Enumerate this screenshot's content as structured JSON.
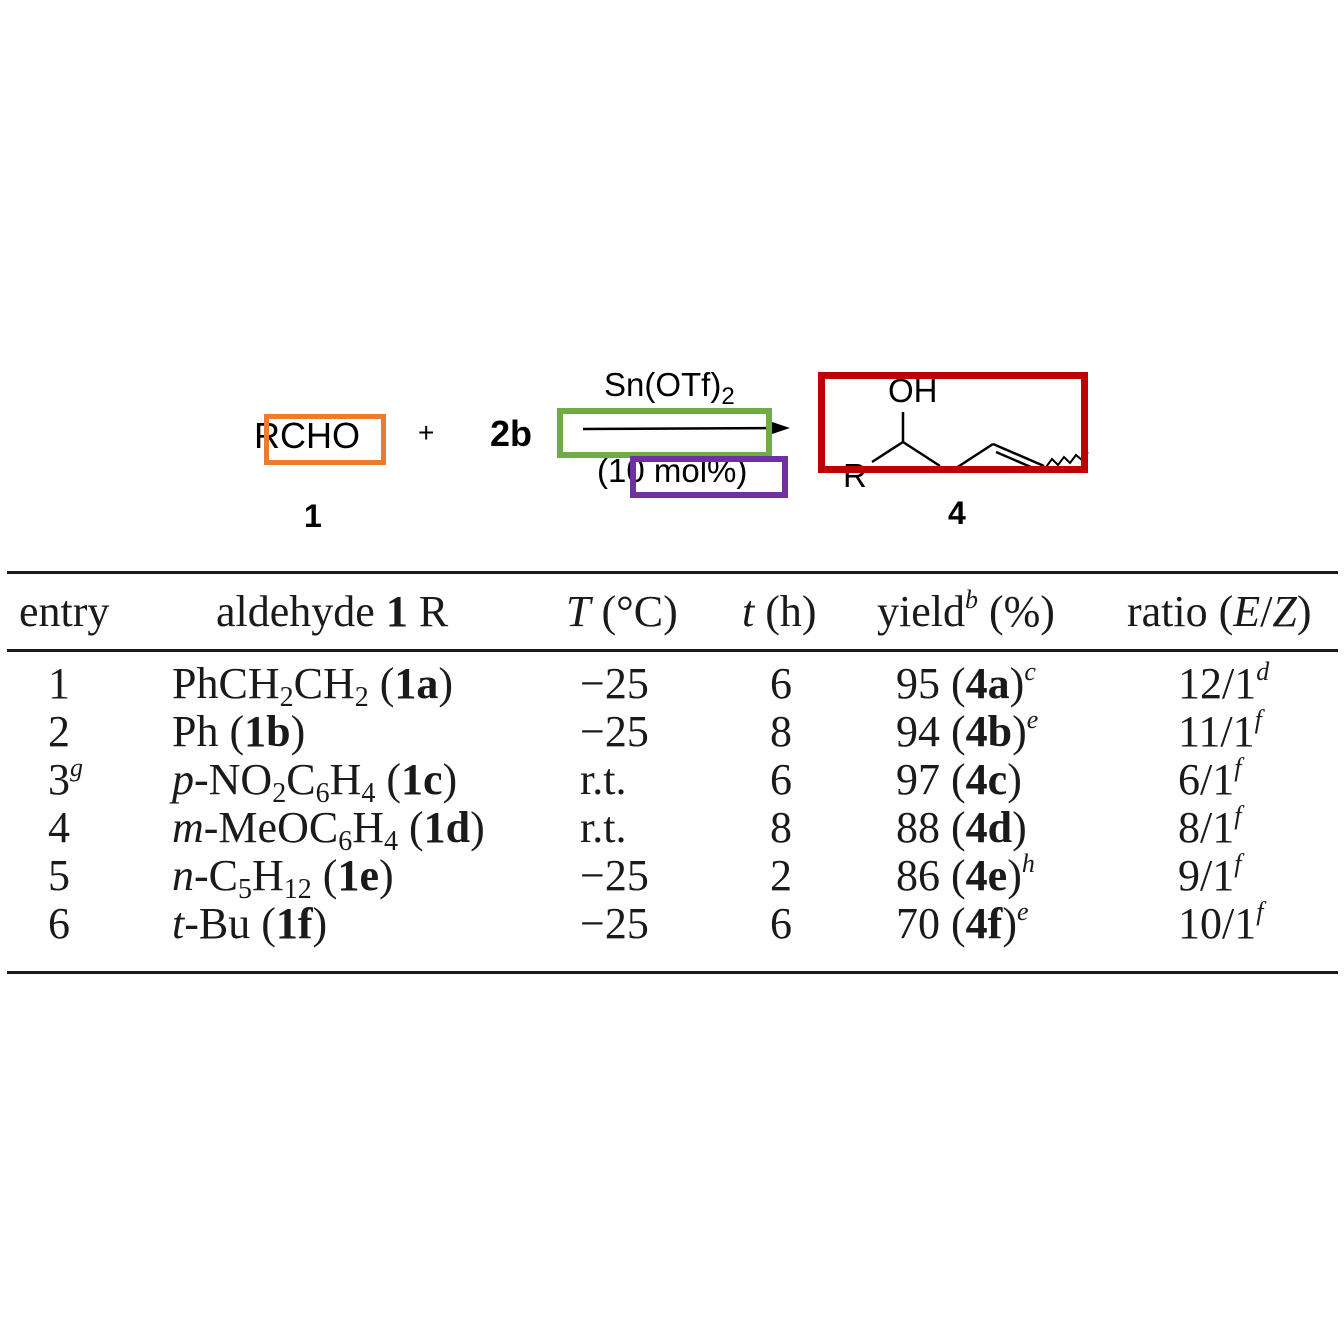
{
  "scheme": {
    "reactant_1": "RCHO",
    "plus": "+",
    "reactant_2": "2b",
    "reagent": "Sn(OTf)",
    "reagent_subscript": "2",
    "loading": "(10 mol%)",
    "label_reactant": "1",
    "label_product": "4",
    "product_oh": "OH",
    "product_r": "R",
    "highlight_colors": {
      "orange": "#ec7b2f",
      "green": "#6fac46",
      "purple": "#7030a0",
      "red": "#c00000"
    }
  },
  "table": {
    "headers": {
      "entry": "entry",
      "aldehyde_pre": "aldehyde ",
      "aldehyde_num": "1",
      "aldehyde_post": " R",
      "temp_var": "T",
      "temp_unit": " (°C)",
      "time_var": "t",
      "time_unit": " (h)",
      "yield_pre": "yield",
      "yield_sup": "b",
      "yield_post": " (%)",
      "ratio_pre": "ratio (",
      "ratio_e": "E",
      "ratio_slash": "/",
      "ratio_z": "Z",
      "ratio_post": ")"
    },
    "rows": [
      {
        "entry": "1",
        "entry_sup": "",
        "r_parts": [
          "PhCH",
          "2",
          "CH",
          "2",
          " ("
        ],
        "r_label": "1a",
        "r_close": ")",
        "temp": "−25",
        "time": "6",
        "yield": "95 (",
        "yield_label": "4a",
        "yield_close": ")",
        "yield_sup": "c",
        "ratio": "12/1",
        "ratio_sup": "d"
      },
      {
        "entry": "2",
        "entry_sup": "",
        "r_parts": [
          "Ph ("
        ],
        "r_label": "1b",
        "r_close": ")",
        "temp": "−25",
        "time": "8",
        "yield": "94 (",
        "yield_label": "4b",
        "yield_close": ")",
        "yield_sup": "e",
        "ratio": "11/1",
        "ratio_sup": "f"
      },
      {
        "entry": "3",
        "entry_sup": "g",
        "r_prefix": "p",
        "r_parts": [
          "-NO",
          "2",
          "C",
          "6",
          "H",
          "4",
          " ("
        ],
        "r_label": "1c",
        "r_close": ")",
        "temp": "r.t.",
        "time": "6",
        "yield": "97 (",
        "yield_label": "4c",
        "yield_close": ")",
        "yield_sup": "",
        "ratio": "6/1",
        "ratio_sup": "f"
      },
      {
        "entry": "4",
        "entry_sup": "",
        "r_prefix": "m",
        "r_parts": [
          "-MeOC",
          "6",
          "H",
          "4",
          " ("
        ],
        "r_label": "1d",
        "r_close": ")",
        "temp": "r.t.",
        "time": "8",
        "yield": "88 (",
        "yield_label": "4d",
        "yield_close": ")",
        "yield_sup": "",
        "ratio": "8/1",
        "ratio_sup": "f"
      },
      {
        "entry": "5",
        "entry_sup": "",
        "r_prefix": "n",
        "r_parts": [
          "-C",
          "5",
          "H",
          "12",
          " ("
        ],
        "r_label": "1e",
        "r_close": ")",
        "temp": "−25",
        "time": "2",
        "yield": "86 (",
        "yield_label": "4e",
        "yield_close": ")",
        "yield_sup": "h",
        "ratio": "9/1",
        "ratio_sup": "f"
      },
      {
        "entry": "6",
        "entry_sup": "",
        "r_prefix": "t",
        "r_parts": [
          "-Bu ("
        ],
        "r_label": "1f",
        "r_close": ")",
        "temp": "−25",
        "time": "6",
        "yield": "70 (",
        "yield_label": "4f",
        "yield_close": ")",
        "yield_sup": "e",
        "ratio": "10/1",
        "ratio_sup": "f"
      }
    ]
  }
}
